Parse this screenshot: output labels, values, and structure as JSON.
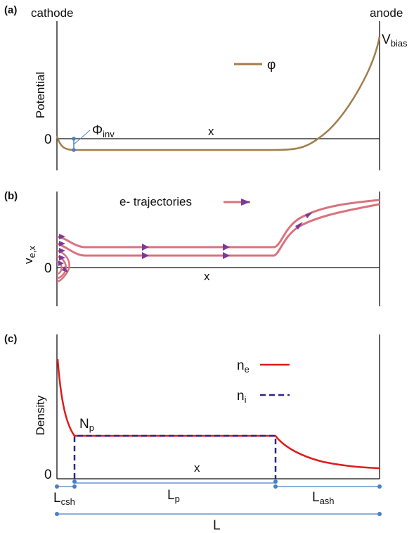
{
  "colors": {
    "potential": "#a17e4d",
    "trajectory": "#d9727d",
    "arrow": "#7a3a9a",
    "electron_density": "#e01b1b",
    "ion_density": "#2b2586",
    "marker": "#4a7fc1",
    "axis": "#111111"
  },
  "icons": {
    "trajectory_arrow": "arrowhead",
    "dimension_marker": "dot"
  },
  "panel_a": {
    "label": "(a)",
    "left_label": "cathode",
    "right_label": "anode",
    "ylabel": "Potential",
    "zero": "0",
    "x": "x",
    "legend": "φ",
    "vbias": "V",
    "vbias_sub": "bias",
    "phi": "Φ",
    "phi_sub": "inv"
  },
  "panel_b": {
    "label": "(b)",
    "ylabel": "v",
    "ylabel_sub": "e,x",
    "zero": "0",
    "x": "x",
    "legend": "e- trajectories"
  },
  "panel_c": {
    "label": "(c)",
    "ylabel": "Density",
    "zero": "0",
    "x": "x",
    "ne": "n",
    "ne_sub": "e",
    "ni": "n",
    "ni_sub": "i",
    "np": "N",
    "np_sub": "p"
  },
  "dimensions": {
    "lcsh": "L",
    "lcsh_sub": "csh",
    "lp": "L",
    "lp_sub": "p",
    "lash": "L",
    "lash_sub": "ash",
    "l": "L"
  }
}
